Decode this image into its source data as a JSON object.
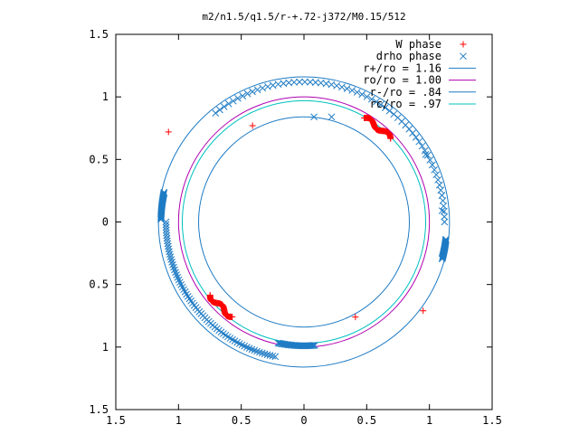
{
  "chart_data": {
    "type": "scatter",
    "title": "m2/n1.5/q1.5/r-+.72-j372/M0.15/512",
    "xlabel": "",
    "ylabel": "",
    "xlim": [
      -1.5,
      1.5
    ],
    "ylim": [
      -1.5,
      1.5
    ],
    "grid": false,
    "legend_position": "top-right",
    "x_ticks": [
      -1.5,
      -1,
      -0.5,
      0,
      0.5,
      1,
      1.5
    ],
    "x_tick_labels": [
      "1.5",
      "1",
      "0.5",
      "0",
      "0.5",
      "1",
      "1.5"
    ],
    "y_ticks": [
      1.5,
      1,
      0.5,
      0,
      -0.5,
      -1,
      -1.5
    ],
    "y_tick_labels": [
      "1.5",
      "1",
      "0.5",
      "0",
      "0.5",
      "1",
      "1.5"
    ],
    "circles": [
      {
        "name": "r+/ro = 1.16",
        "radius": 1.16,
        "color": "#1e7bc4"
      },
      {
        "name": "ro/ro = 1.00",
        "radius": 1.0,
        "color": "#b000b0"
      },
      {
        "name": "r-/ro = .84",
        "radius": 0.84,
        "color": "#1e7bc4"
      },
      {
        "name": "rc/ro = .97",
        "radius": 0.97,
        "color": "#00c0c0"
      }
    ],
    "series": [
      {
        "name": "W phase",
        "marker": "plus",
        "color": "#ff0000",
        "arcs": [
          {
            "radius": 0.96,
            "theta_start": 44,
            "theta_end": 60,
            "count": 50,
            "wave": 0.02
          },
          {
            "radius": 0.95,
            "theta_start": 233,
            "theta_end": 218,
            "count": 50,
            "wave": 0.02
          }
        ],
        "points": [
          [
            -1.08,
            0.72
          ],
          [
            -0.41,
            0.77
          ],
          [
            0.95,
            -0.71
          ],
          [
            0.41,
            -0.76
          ]
        ]
      },
      {
        "name": "drho phase",
        "marker": "cross",
        "color": "#1e7bc4",
        "arcs": [
          {
            "radius": 1.12,
            "theta_start": 129,
            "theta_end": 0,
            "count": 60,
            "wave": 0.0,
            "comment": ""
          },
          {
            "radius": 1.14,
            "theta_start": 168,
            "theta_end": 179,
            "count": 30,
            "wave": 0.0
          },
          {
            "radius": 1.1,
            "theta_start": 180,
            "theta_end": 258,
            "count": 70,
            "wave": 0.0
          },
          {
            "radius": 0.99,
            "theta_start": 258,
            "theta_end": 275,
            "count": 30,
            "wave": 0.0
          },
          {
            "radius": 1.14,
            "theta_start": 345,
            "theta_end": 353,
            "count": 25,
            "wave": 0.0
          }
        ],
        "points": [
          [
            0.22,
            0.84
          ],
          [
            0.08,
            0.84
          ],
          [
            1.1,
            0.09
          ],
          [
            0.97,
            0.54
          ]
        ]
      }
    ]
  }
}
